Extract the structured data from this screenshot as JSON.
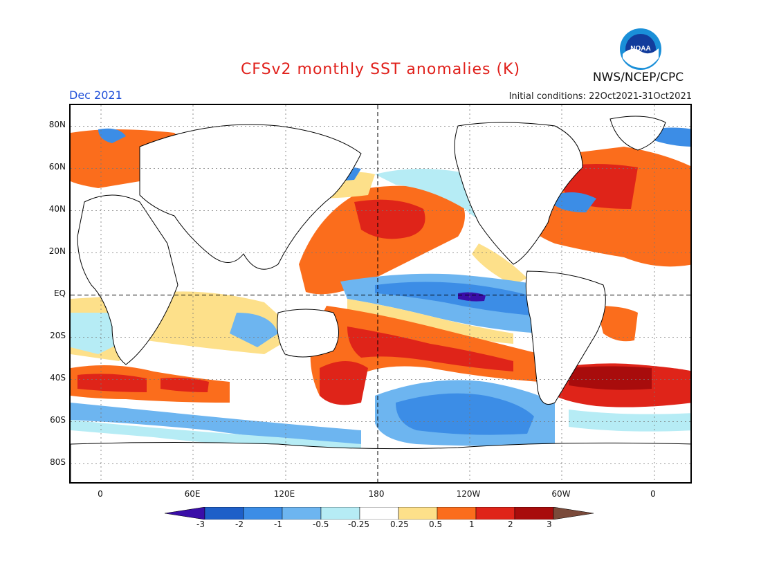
{
  "header": {
    "title": "CFSv2 monthly SST anomalies (K)",
    "month": "Dec 2021",
    "initial_conditions": "Initial conditions: 22Oct2021-31Oct2021",
    "org": "NWS/NCEP/CPC",
    "logo_text": "NOAA"
  },
  "map": {
    "projection": "Equirectangular, 20E-20E (centered 180)",
    "lat_labels": [
      "80N",
      "60N",
      "40N",
      "20N",
      "EQ",
      "20S",
      "40S",
      "60S",
      "80S"
    ],
    "lon_labels": [
      "0",
      "60E",
      "120E",
      "180",
      "120W",
      "60W",
      "0"
    ],
    "reference_lines": [
      "EQ",
      "180"
    ]
  },
  "colorbar": {
    "labels": [
      "-3",
      "-2",
      "-1",
      "-0.5",
      "-0.25",
      "0.25",
      "0.5",
      "1",
      "2",
      "3"
    ],
    "colors": [
      "#3a0ea8",
      "#1e5fc8",
      "#3c8de6",
      "#6db5f0",
      "#b6ecf5",
      "#ffffff",
      "#fde08a",
      "#fb6d1c",
      "#df2419",
      "#a80c0c",
      "#7a4a3a"
    ]
  }
}
